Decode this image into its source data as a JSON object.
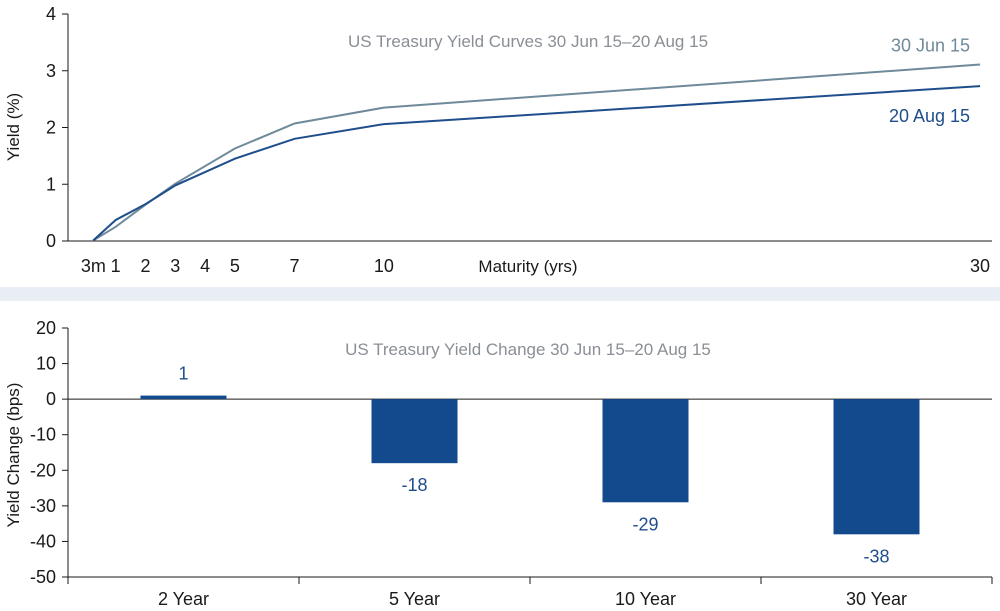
{
  "colors": {
    "line_jun": "#6f8a9a",
    "line_aug": "#1f4e8c",
    "bar": "#134a8e",
    "divider": "#e8eef4",
    "axis": "#1a1a1a"
  },
  "chart_data": [
    {
      "type": "line",
      "title": "US Treasury Yield Curves 30 Jun 15–20 Aug 15",
      "xlabel": "Maturity (yrs)",
      "ylabel": "Yield (%)",
      "xlim": [
        -0.6,
        30.4
      ],
      "ylim": [
        0,
        4
      ],
      "x_ticks": [
        {
          "value": 0.25,
          "label": "3m"
        },
        {
          "value": 1,
          "label": "1"
        },
        {
          "value": 2,
          "label": "2"
        },
        {
          "value": 3,
          "label": "3"
        },
        {
          "value": 4,
          "label": "4"
        },
        {
          "value": 5,
          "label": "5"
        },
        {
          "value": 7,
          "label": "7"
        },
        {
          "value": 10,
          "label": "10"
        },
        {
          "value": 30,
          "label": "30"
        }
      ],
      "y_ticks": [
        "0",
        "1",
        "2",
        "3",
        "4"
      ],
      "grid": false,
      "series": [
        {
          "name": "30 Jun 15",
          "points": [
            [
              0.25,
              0.01
            ],
            [
              1,
              0.25
            ],
            [
              2,
              0.64
            ],
            [
              3,
              1.01
            ],
            [
              5,
              1.63
            ],
            [
              7,
              2.07
            ],
            [
              10,
              2.35
            ],
            [
              30,
              3.11
            ]
          ]
        },
        {
          "name": "20 Aug 15",
          "points": [
            [
              0.25,
              0.01
            ],
            [
              1,
              0.37
            ],
            [
              2,
              0.65
            ],
            [
              3,
              0.98
            ],
            [
              5,
              1.45
            ],
            [
              7,
              1.8
            ],
            [
              10,
              2.06
            ],
            [
              30,
              2.73
            ]
          ]
        }
      ]
    },
    {
      "type": "bar",
      "title": "US Treasury Yield Change 30 Jun 15–20 Aug 15",
      "ylabel": "Yield Change (bps)",
      "categories": [
        "2 Year",
        "5 Year",
        "10 Year",
        "30 Year"
      ],
      "values": [
        1,
        -18,
        -29,
        -38
      ],
      "value_labels": [
        "1",
        "-18",
        "-29",
        "-38"
      ],
      "ylim": [
        -50,
        20
      ],
      "y_ticks": [
        "20",
        "10",
        "0",
        "-10",
        "-20",
        "-30",
        "-40",
        "-50"
      ],
      "grid": false
    }
  ]
}
